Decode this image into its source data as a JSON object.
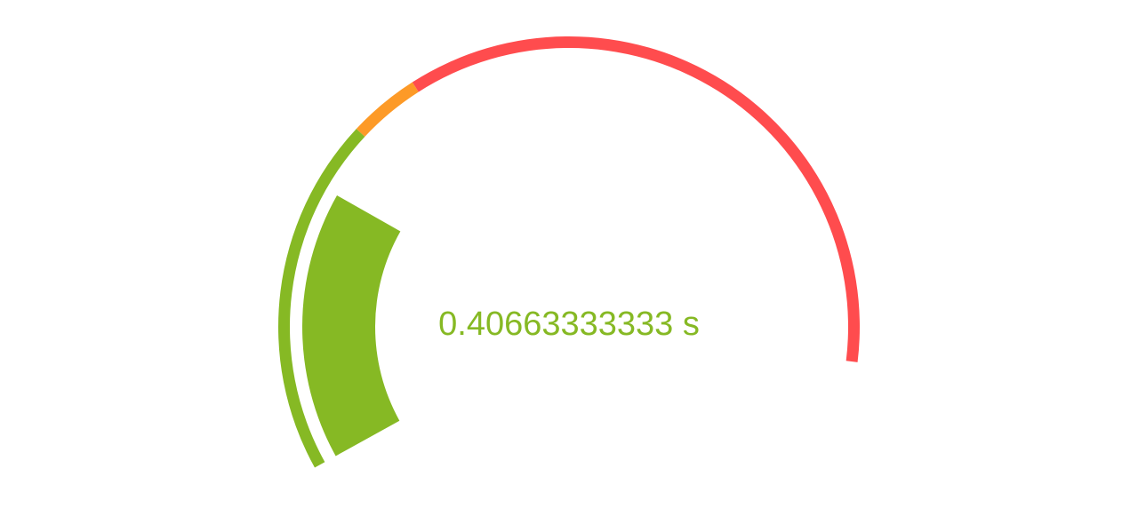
{
  "chart_data": {
    "type": "gauge",
    "value": 0.40663333333,
    "value_label": "0.40663333333 s",
    "unit": "s",
    "range": [
      0,
      1.5
    ],
    "bands": [
      {
        "from": 0,
        "to": 0.5,
        "color": "#86b924"
      },
      {
        "from": 0.5,
        "to": 0.6,
        "color": "#fd9a27"
      },
      {
        "from": 0.6,
        "to": 1.5,
        "color": "#ff4c4e"
      }
    ],
    "value_color": "#86b924"
  }
}
